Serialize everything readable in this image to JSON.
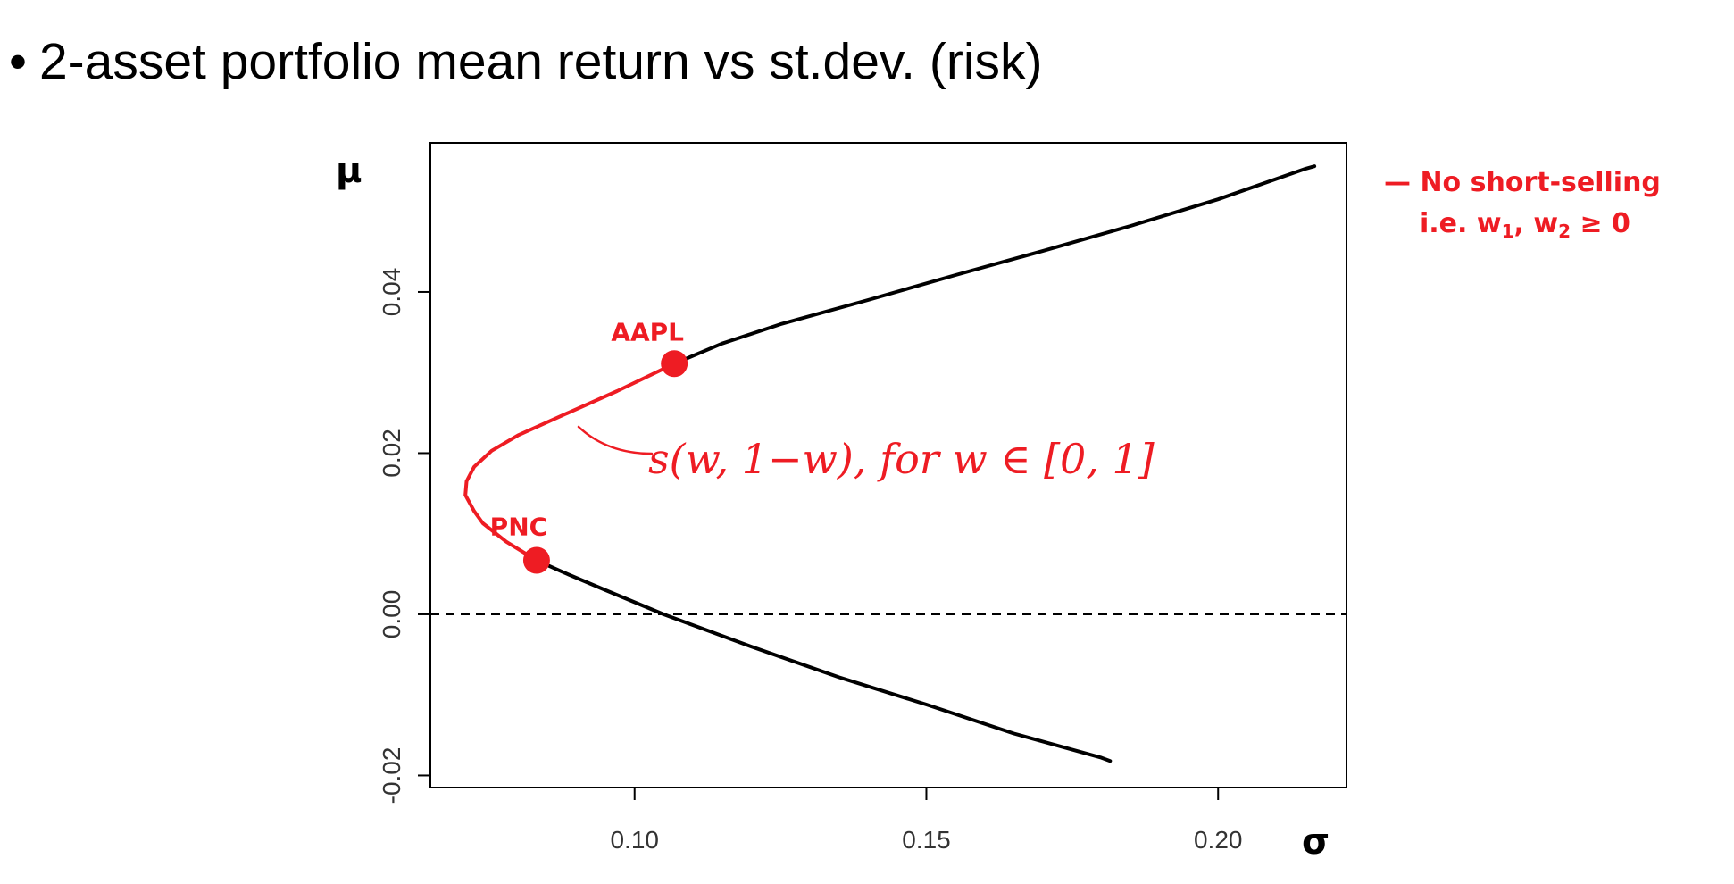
{
  "slide": {
    "bullet": "•",
    "title": "2-asset portfolio mean return vs st.dev. (risk)"
  },
  "note": {
    "dash": "—",
    "line1": "No short-selling",
    "line2_prefix": "i.e. w",
    "sub1": "1",
    "sep": ", w",
    "sub2": "2",
    "suffix": " ≥ 0"
  },
  "colors": {
    "curve": "#000000",
    "highlight": "#ee1c23",
    "zero_line": "#000000"
  },
  "chart_data": {
    "type": "line",
    "xlabel": "σ",
    "ylabel": "μ",
    "xlim": [
      0.065,
      0.222
    ],
    "ylim": [
      -0.0215,
      0.0585
    ],
    "x_ticks": [
      0.1,
      0.15,
      0.2
    ],
    "x_tick_labels": [
      "0.10",
      "0.15",
      "0.20"
    ],
    "y_ticks": [
      -0.02,
      0.0,
      0.02,
      0.04
    ],
    "y_tick_labels": [
      "-0.02",
      "0.00",
      "0.02",
      "0.04"
    ],
    "reference_line": {
      "y": 0,
      "style": "dashed"
    },
    "series": [
      {
        "style": "black",
        "x": [
          0.0832,
          0.0875,
          0.095,
          0.105,
          0.12,
          0.135,
          0.15,
          0.165,
          0.18,
          0.1815
        ],
        "y": [
          0.0067,
          0.0053,
          0.003,
          0.0,
          -0.004,
          -0.0078,
          -0.0112,
          -0.0148,
          -0.0178,
          -0.0182
        ]
      },
      {
        "style": "red",
        "x": [
          0.0832,
          0.078,
          0.074,
          0.0725,
          0.071,
          0.0712,
          0.0725,
          0.0755,
          0.08,
          0.088,
          0.097,
          0.1068
        ],
        "y": [
          0.0067,
          0.009,
          0.0113,
          0.0128,
          0.0148,
          0.0165,
          0.0183,
          0.0203,
          0.0222,
          0.0248,
          0.0277,
          0.0311
        ]
      },
      {
        "style": "black",
        "x": [
          0.1068,
          0.115,
          0.125,
          0.14,
          0.155,
          0.17,
          0.185,
          0.2,
          0.215,
          0.2165
        ],
        "y": [
          0.0311,
          0.0336,
          0.036,
          0.039,
          0.0421,
          0.0451,
          0.0482,
          0.0515,
          0.0553,
          0.0556
        ]
      }
    ],
    "points": [
      {
        "label": "AAPL",
        "x": 0.1068,
        "y": 0.0311
      },
      {
        "label": "PNC",
        "x": 0.0832,
        "y": 0.0067
      }
    ],
    "annotation": "s(w, 1−w), for  w ∈ [0, 1]"
  }
}
